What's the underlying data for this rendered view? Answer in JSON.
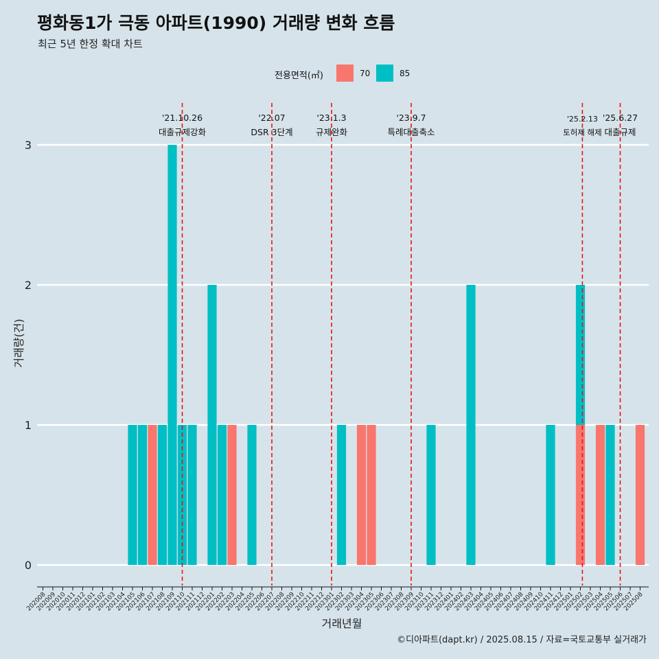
{
  "header": {
    "title": "평화동1가 극동 아파트(1990) 거래량 변화 흐름",
    "subtitle": "최근 5년 한정 확대 차트"
  },
  "legend": {
    "title": "전용면적(㎡)",
    "items": [
      {
        "label": "70",
        "color": "#f8766d"
      },
      {
        "label": "85",
        "color": "#00bfc4"
      }
    ]
  },
  "caption": "©디아파트(dapt.kr) / 2025.08.15 / 자료=국토교통부 실거래가",
  "chart_data": {
    "type": "bar",
    "stacked": true,
    "xlabel": "거래년월",
    "ylabel": "거래량(건)",
    "ylim": [
      0,
      3
    ],
    "yticks": [
      0,
      1,
      2,
      3
    ],
    "grid": "horizontal major only",
    "legend_position": "top",
    "categories": [
      "202008",
      "202009",
      "202010",
      "202011",
      "202012",
      "202101",
      "202102",
      "202103",
      "202104",
      "202105",
      "202106",
      "202107",
      "202108",
      "202109",
      "202110",
      "202111",
      "202112",
      "202201",
      "202202",
      "202203",
      "202204",
      "202205",
      "202206",
      "202207",
      "202208",
      "202209",
      "202210",
      "202211",
      "202212",
      "202301",
      "202302",
      "202303",
      "202304",
      "202305",
      "202306",
      "202307",
      "202308",
      "202309",
      "202310",
      "202311",
      "202312",
      "202401",
      "202402",
      "202403",
      "202404",
      "202405",
      "202406",
      "202407",
      "202408",
      "202409",
      "202410",
      "202411",
      "202412",
      "202501",
      "202502",
      "202503",
      "202504",
      "202505",
      "202506",
      "202507",
      "202508"
    ],
    "series": [
      {
        "name": "70",
        "color": "#f8766d",
        "values": [
          0,
          0,
          0,
          0,
          0,
          0,
          0,
          0,
          0,
          0,
          0,
          1,
          0,
          0,
          0,
          0,
          0,
          0,
          0,
          1,
          0,
          0,
          0,
          0,
          0,
          0,
          0,
          0,
          0,
          0,
          0,
          0,
          1,
          1,
          0,
          0,
          0,
          0,
          0,
          0,
          0,
          0,
          0,
          0,
          0,
          0,
          0,
          0,
          0,
          0,
          0,
          0,
          0,
          0,
          1,
          0,
          1,
          0,
          0,
          0,
          1
        ]
      },
      {
        "name": "85",
        "color": "#00bfc4",
        "values": [
          0,
          0,
          0,
          0,
          0,
          0,
          0,
          0,
          0,
          1,
          1,
          0,
          1,
          3,
          1,
          1,
          0,
          2,
          1,
          0,
          0,
          1,
          0,
          0,
          0,
          0,
          0,
          0,
          0,
          0,
          1,
          0,
          0,
          0,
          0,
          0,
          0,
          0,
          0,
          1,
          0,
          0,
          0,
          2,
          0,
          0,
          0,
          0,
          0,
          0,
          0,
          1,
          0,
          0,
          1,
          0,
          0,
          1,
          0,
          0,
          0
        ]
      }
    ],
    "events": [
      {
        "x": 14,
        "date": "'21.10.26",
        "label": "대출규제강화"
      },
      {
        "x": 23,
        "date": "'22.07",
        "label": "DSR 3단계"
      },
      {
        "x": 29,
        "date": "'23.1.3",
        "label": "규제완화"
      },
      {
        "x": 37,
        "date": "'23.9.7",
        "label": "특례대출축소"
      },
      {
        "x": 54.2,
        "date": "'25.2.13",
        "label": "토허제 해제"
      },
      {
        "x": 58,
        "date": "'25.6.27",
        "label": "대출규제"
      }
    ]
  }
}
